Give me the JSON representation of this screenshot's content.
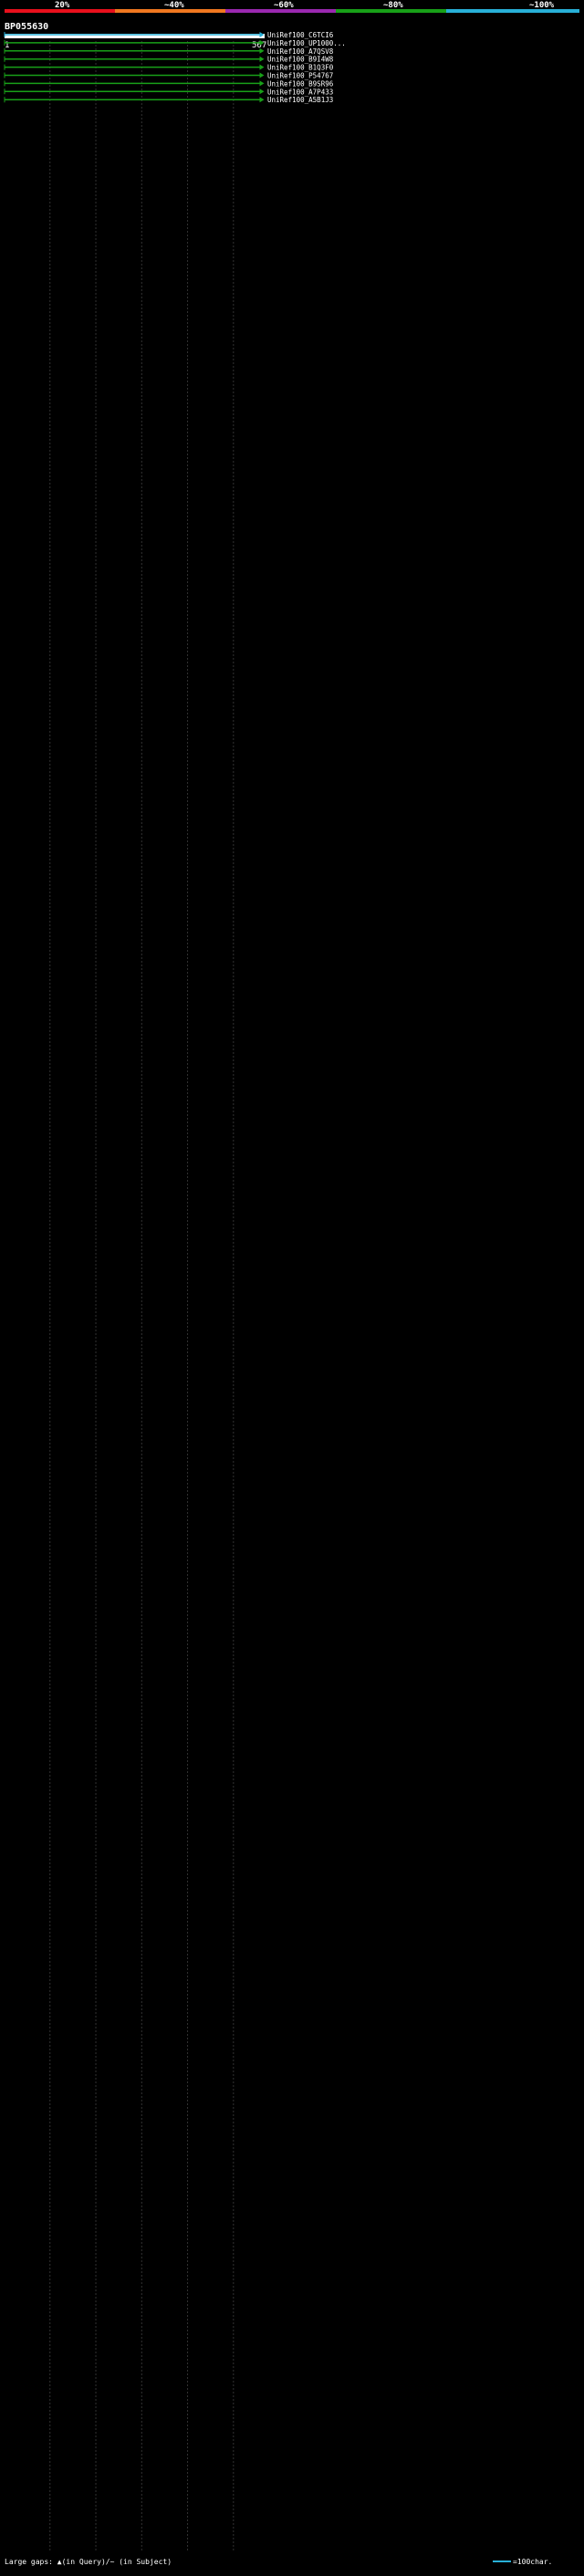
{
  "header": {
    "identity_scale": [
      {
        "label": "20%",
        "color": "#e8101c"
      },
      {
        "label": "~40%",
        "color": "#f07820"
      },
      {
        "label": "~60%",
        "color": "#9a28b0"
      },
      {
        "label": "~80%",
        "color": "#18a018"
      },
      {
        "label": "~100%",
        "color": "#28b0d8"
      }
    ],
    "query_id": "BP055630",
    "ruler_start": "1",
    "ruler_end": "567"
  },
  "footer": {
    "legend_text": "Large gaps: ▲(in Query)/~ (in Subject)",
    "scale_text": "=100char."
  },
  "chart_data": {
    "type": "alignment-overview",
    "query_length": 567,
    "color_key": {
      "cyan": "~100%",
      "green": "~80%",
      "magenta": "~60%",
      "orange": "~40%",
      "red": "20%"
    },
    "hits": [
      {
        "id": "UniRef100_C6TCI6",
        "start": 1,
        "end": 567,
        "color": "#28b0d8"
      },
      {
        "id": "UniRef100_UP1000...",
        "start": 1,
        "end": 567,
        "color": "#18a018"
      },
      {
        "id": "UniRef100_A7QSV8",
        "start": 1,
        "end": 567,
        "color": "#18a018"
      },
      {
        "id": "UniRef100_B9I4W8",
        "start": 1,
        "end": 567,
        "color": "#18a018"
      },
      {
        "id": "UniRef100_B1Q3F0",
        "start": 1,
        "end": 567,
        "color": "#18a018"
      },
      {
        "id": "UniRef100_P54767",
        "start": 1,
        "end": 567,
        "color": "#18a018"
      },
      {
        "id": "UniRef100_B9SR96",
        "start": 1,
        "end": 567,
        "color": "#18a018"
      },
      {
        "id": "UniRef100_A7P433",
        "start": 1,
        "end": 567,
        "color": "#18a018"
      },
      {
        "id": "UniRef100_A5B1J3",
        "start": 1,
        "end": 567,
        "color": "#18a018"
      }
    ]
  }
}
